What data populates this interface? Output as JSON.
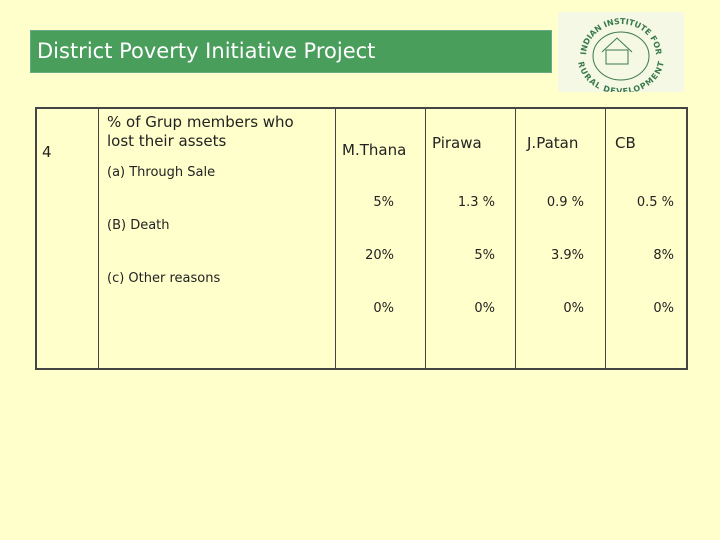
{
  "header": {
    "title": "District Poverty Initiative Project"
  },
  "logo": {
    "top": "INDIAN INSTITUTE FOR",
    "bottom": "RURAL DEVELOPMENT"
  },
  "table": {
    "number": "4",
    "question": "% of Grup members who lost their assets",
    "columns": [
      "M.Thana",
      "Pirawa",
      "J.Patan",
      "CB"
    ],
    "rows": [
      {
        "label": "(a) Through Sale",
        "values": [
          "5%",
          "1.3 %",
          "0.9 %",
          "0.5 %"
        ]
      },
      {
        "label": "(B) Death",
        "values": [
          "20%",
          "5%",
          "3.9%",
          "8%"
        ]
      },
      {
        "label": "(c) Other reasons",
        "values": [
          "0%",
          "0%",
          "0%",
          "0%"
        ]
      }
    ]
  }
}
